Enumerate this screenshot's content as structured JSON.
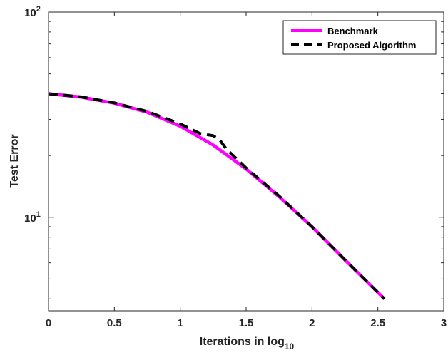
{
  "chart_data": {
    "type": "line",
    "xlabel": "Iterations in log",
    "xlabel_subscript": "10",
    "ylabel": "Test Error",
    "xlim": [
      0,
      3
    ],
    "ylim": [
      3.5,
      100
    ],
    "yscale": "log",
    "xticks": [
      0,
      0.5,
      1,
      1.5,
      2,
      2.5,
      3
    ],
    "xtick_labels": [
      "0",
      "0.5",
      "1",
      "1.5",
      "2",
      "2.5",
      "3"
    ],
    "yticks": [
      10,
      100
    ],
    "ytick_labels": [
      {
        "base": "10",
        "exp": "1"
      },
      {
        "base": "10",
        "exp": "2"
      }
    ],
    "grid": false,
    "legend_position": "top-right",
    "series": [
      {
        "name": "Benchmark",
        "color": "#ff00ff",
        "style": "solid",
        "x": [
          0,
          0.25,
          0.5,
          0.75,
          1,
          1.25,
          1.5,
          1.75,
          2,
          2.25,
          2.55
        ],
        "y": [
          40,
          38.5,
          36,
          32.5,
          27.8,
          22.5,
          17.2,
          12.6,
          9.0,
          6.2,
          4.0
        ]
      },
      {
        "name": "Proposed Algorithm",
        "color": "#000000",
        "style": "dashed",
        "x": [
          0,
          0.25,
          0.5,
          0.75,
          1,
          1.15,
          1.25,
          1.3,
          1.35,
          1.5,
          1.75,
          2,
          2.25,
          2.55
        ],
        "y": [
          40,
          38.6,
          36.1,
          32.8,
          28.5,
          25.6,
          25.0,
          23.8,
          21.5,
          17.4,
          12.7,
          9.0,
          6.2,
          4.0
        ]
      }
    ]
  }
}
